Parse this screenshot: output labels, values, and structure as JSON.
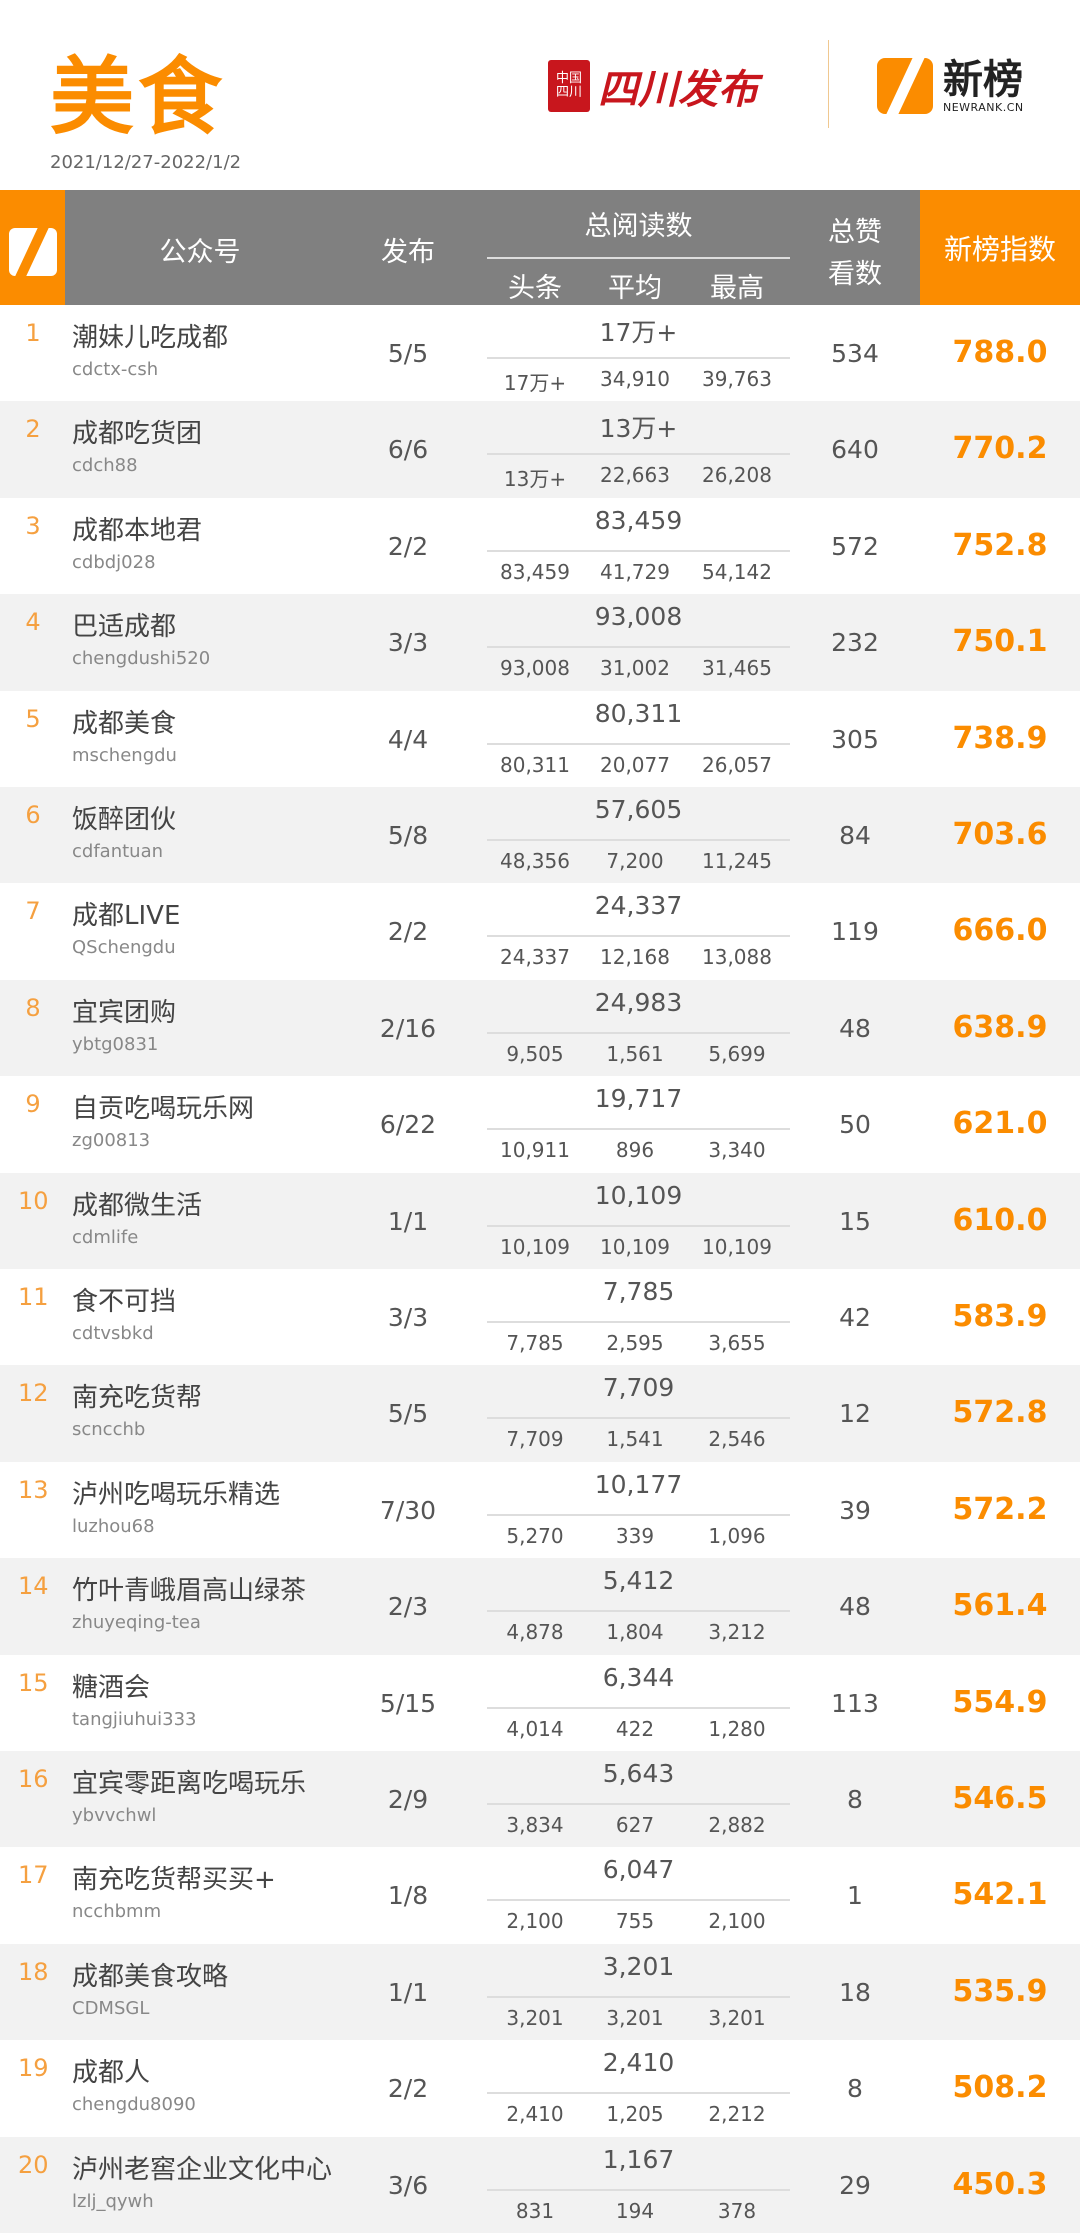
{
  "header": {
    "title": "美食",
    "date_range": "2021/12/27-2022/1/2",
    "partner_logo_text": "四川发布",
    "partner_seal_text": "中国四川",
    "brand_name": "新榜",
    "brand_domain": "NEWRANK.CN"
  },
  "table_header": {
    "account": "公众号",
    "publish": "发布",
    "total_reads": "总阅读数",
    "headline": "头条",
    "average": "平均",
    "max": "最高",
    "likes_line1": "总赞",
    "likes_line2": "看数",
    "index": "新榜指数"
  },
  "colors": {
    "accent": "#fb8c00",
    "header_gray": "#808080",
    "partner_red": "#c8161d"
  },
  "rows": [
    {
      "rank": "1",
      "name": "潮妹儿吃成都",
      "handle": "cdctx-csh",
      "publish": "5/5",
      "total": "17万+",
      "headline": "17万+",
      "average": "34,910",
      "max": "39,763",
      "likes": "534",
      "index": "788.0"
    },
    {
      "rank": "2",
      "name": "成都吃货团",
      "handle": "cdch88",
      "publish": "6/6",
      "total": "13万+",
      "headline": "13万+",
      "average": "22,663",
      "max": "26,208",
      "likes": "640",
      "index": "770.2"
    },
    {
      "rank": "3",
      "name": "成都本地君",
      "handle": "cdbdj028",
      "publish": "2/2",
      "total": "83,459",
      "headline": "83,459",
      "average": "41,729",
      "max": "54,142",
      "likes": "572",
      "index": "752.8"
    },
    {
      "rank": "4",
      "name": "巴适成都",
      "handle": "chengdushi520",
      "publish": "3/3",
      "total": "93,008",
      "headline": "93,008",
      "average": "31,002",
      "max": "31,465",
      "likes": "232",
      "index": "750.1"
    },
    {
      "rank": "5",
      "name": "成都美食",
      "handle": "mschengdu",
      "publish": "4/4",
      "total": "80,311",
      "headline": "80,311",
      "average": "20,077",
      "max": "26,057",
      "likes": "305",
      "index": "738.9"
    },
    {
      "rank": "6",
      "name": "饭醉团伙",
      "handle": "cdfantuan",
      "publish": "5/8",
      "total": "57,605",
      "headline": "48,356",
      "average": "7,200",
      "max": "11,245",
      "likes": "84",
      "index": "703.6"
    },
    {
      "rank": "7",
      "name": "成都LIVE",
      "handle": "QSchengdu",
      "publish": "2/2",
      "total": "24,337",
      "headline": "24,337",
      "average": "12,168",
      "max": "13,088",
      "likes": "119",
      "index": "666.0"
    },
    {
      "rank": "8",
      "name": "宜宾团购",
      "handle": "ybtg0831",
      "publish": "2/16",
      "total": "24,983",
      "headline": "9,505",
      "average": "1,561",
      "max": "5,699",
      "likes": "48",
      "index": "638.9"
    },
    {
      "rank": "9",
      "name": "自贡吃喝玩乐网",
      "handle": "zg00813",
      "publish": "6/22",
      "total": "19,717",
      "headline": "10,911",
      "average": "896",
      "max": "3,340",
      "likes": "50",
      "index": "621.0"
    },
    {
      "rank": "10",
      "name": "成都微生活",
      "handle": "cdmlife",
      "publish": "1/1",
      "total": "10,109",
      "headline": "10,109",
      "average": "10,109",
      "max": "10,109",
      "likes": "15",
      "index": "610.0"
    },
    {
      "rank": "11",
      "name": "食不可挡",
      "handle": "cdtvsbkd",
      "publish": "3/3",
      "total": "7,785",
      "headline": "7,785",
      "average": "2,595",
      "max": "3,655",
      "likes": "42",
      "index": "583.9"
    },
    {
      "rank": "12",
      "name": "南充吃货帮",
      "handle": "scncchb",
      "publish": "5/5",
      "total": "7,709",
      "headline": "7,709",
      "average": "1,541",
      "max": "2,546",
      "likes": "12",
      "index": "572.8"
    },
    {
      "rank": "13",
      "name": "泸州吃喝玩乐精选",
      "handle": "luzhou68",
      "publish": "7/30",
      "total": "10,177",
      "headline": "5,270",
      "average": "339",
      "max": "1,096",
      "likes": "39",
      "index": "572.2"
    },
    {
      "rank": "14",
      "name": "竹叶青峨眉高山绿茶",
      "handle": "zhuyeqing-tea",
      "publish": "2/3",
      "total": "5,412",
      "headline": "4,878",
      "average": "1,804",
      "max": "3,212",
      "likes": "48",
      "index": "561.4"
    },
    {
      "rank": "15",
      "name": "糖酒会",
      "handle": "tangjiuhui333",
      "publish": "5/15",
      "total": "6,344",
      "headline": "4,014",
      "average": "422",
      "max": "1,280",
      "likes": "113",
      "index": "554.9"
    },
    {
      "rank": "16",
      "name": "宜宾零距离吃喝玩乐",
      "handle": "ybvvchwl",
      "publish": "2/9",
      "total": "5,643",
      "headline": "3,834",
      "average": "627",
      "max": "2,882",
      "likes": "8",
      "index": "546.5"
    },
    {
      "rank": "17",
      "name": "南充吃货帮买买+",
      "handle": "ncchbmm",
      "publish": "1/8",
      "total": "6,047",
      "headline": "2,100",
      "average": "755",
      "max": "2,100",
      "likes": "1",
      "index": "542.1"
    },
    {
      "rank": "18",
      "name": "成都美食攻略",
      "handle": "CDMSGL",
      "publish": "1/1",
      "total": "3,201",
      "headline": "3,201",
      "average": "3,201",
      "max": "3,201",
      "likes": "18",
      "index": "535.9"
    },
    {
      "rank": "19",
      "name": "成都人",
      "handle": "chengdu8090",
      "publish": "2/2",
      "total": "2,410",
      "headline": "2,410",
      "average": "1,205",
      "max": "2,212",
      "likes": "8",
      "index": "508.2"
    },
    {
      "rank": "20",
      "name": "泸州老窖企业文化中心",
      "handle": "lzlj_qywh",
      "publish": "3/6",
      "total": "1,167",
      "headline": "831",
      "average": "194",
      "max": "378",
      "likes": "29",
      "index": "450.3"
    }
  ]
}
